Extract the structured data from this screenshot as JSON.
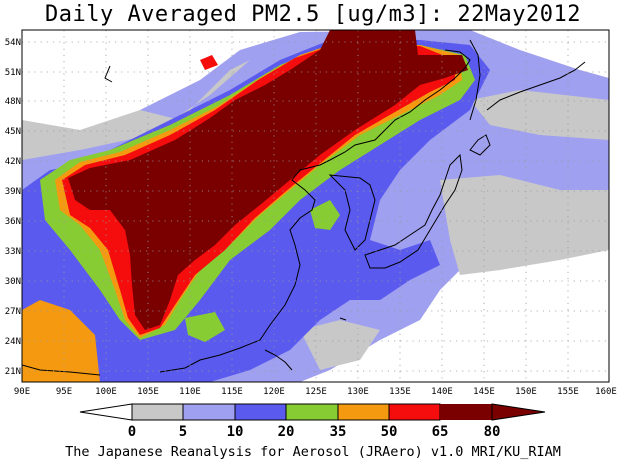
{
  "title": "Daily Averaged PM2.5 [ug/m3]: 22May2012",
  "credit": "The Japanese Reanalysis for Aerosol (JRAero) v1.0 MRI/KU_RIAM",
  "lat_labels": [
    "54N",
    "51N",
    "48N",
    "45N",
    "42N",
    "39N",
    "36N",
    "33N",
    "30N",
    "27N",
    "24N",
    "21N"
  ],
  "lon_labels": [
    "90E",
    "95E",
    "100E",
    "105E",
    "110E",
    "115E",
    "120E",
    "125E",
    "130E",
    "135E",
    "140E",
    "145E",
    "150E",
    "155E",
    "160E"
  ],
  "colorbar": {
    "thresholds": [
      "0",
      "5",
      "10",
      "20",
      "35",
      "50",
      "65",
      "80"
    ],
    "colors": [
      "#ffffff",
      "#c8c8c8",
      "#a0a0f0",
      "#5a5aee",
      "#88cc33",
      "#f59a10",
      "#f50d0d",
      "#7a0000"
    ]
  },
  "map_extent": {
    "lon": [
      90,
      160
    ],
    "lat": [
      20,
      55
    ]
  }
}
